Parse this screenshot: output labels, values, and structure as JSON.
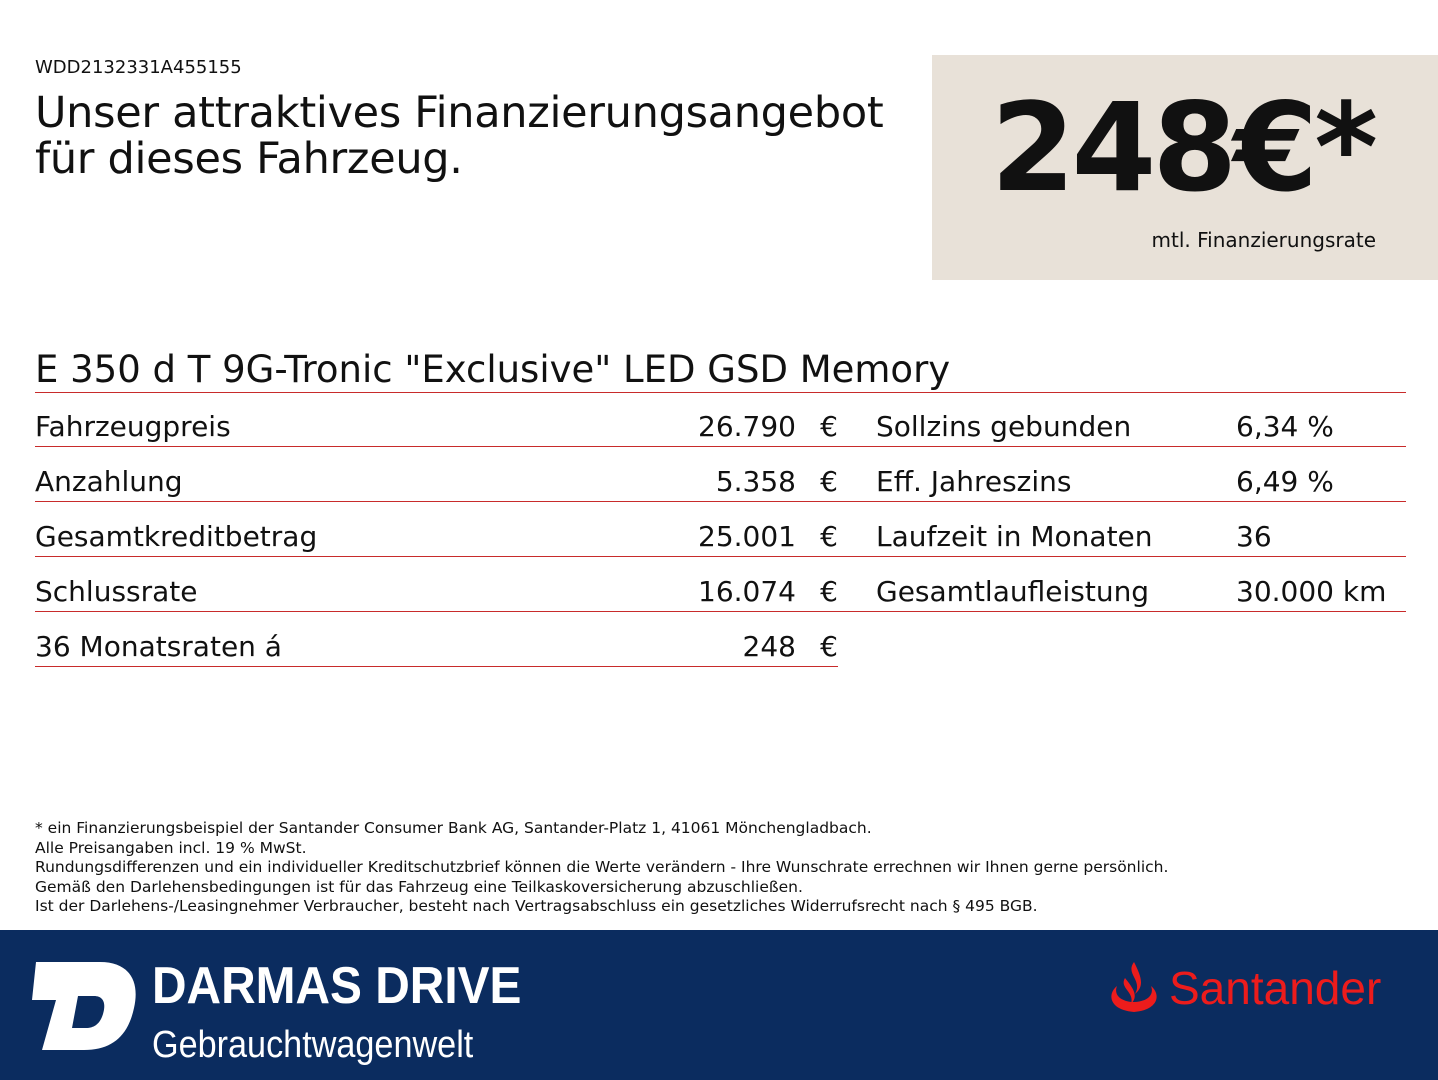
{
  "vin": "WDD2132331A455155",
  "headline": [
    "Unser attraktives Finanzierungsangebot",
    "für dieses Fahrzeug."
  ],
  "price": {
    "value": "248€*",
    "label": "mtl. Finanzierungsrate"
  },
  "model": "E 350 d T 9G-Tronic \"Exclusive\" LED GSD Memory",
  "left_rows": [
    {
      "label": "Fahrzeugpreis",
      "value": "26.790",
      "unit": "€"
    },
    {
      "label": "Anzahlung",
      "value": "5.358",
      "unit": "€"
    },
    {
      "label": "Gesamtkreditbetrag",
      "value": "25.001",
      "unit": "€"
    },
    {
      "label": "Schlussrate",
      "value": "16.074",
      "unit": "€"
    },
    {
      "label": "36 Monatsraten á",
      "value": "248",
      "unit": "€"
    }
  ],
  "right_rows": [
    {
      "label": "Sollzins gebunden",
      "value": "6,34 %"
    },
    {
      "label": "Eff. Jahreszins",
      "value": "6,49 %"
    },
    {
      "label": "Laufzeit in Monaten",
      "value": "36"
    },
    {
      "label": "Gesamtlaufleistung",
      "value": "30.000 km"
    }
  ],
  "footnotes": [
    "* ein Finanzierungsbeispiel der Santander Consumer Bank AG, Santander-Platz 1, 41061 Mönchengladbach.",
    "Alle Preisangaben incl. 19 % MwSt.",
    "Rundungsdifferenzen und ein individueller Kreditschutzbrief können die Werte verändern - Ihre Wunschrate errechnen wir Ihnen gerne persönlich.",
    "Gemäß den Darlehensbedingungen ist für das Fahrzeug eine Teilkaskoversicherung abzuschließen.",
    "Ist der Darlehens-/Leasingnehmer Verbraucher, besteht nach Vertragsabschluss ein gesetzliches Widerrufsrecht nach § 495 BGB."
  ],
  "footer": {
    "dealer_name": "DARMAS DRIVE",
    "dealer_sub": "Gebrauchtwagenwelt",
    "bank": "Santander"
  },
  "colors": {
    "navy": "#0b2c5f",
    "rule_red": "#c82b2b",
    "santander_red": "#ec1c1c",
    "price_box": "#e8e1d8"
  }
}
